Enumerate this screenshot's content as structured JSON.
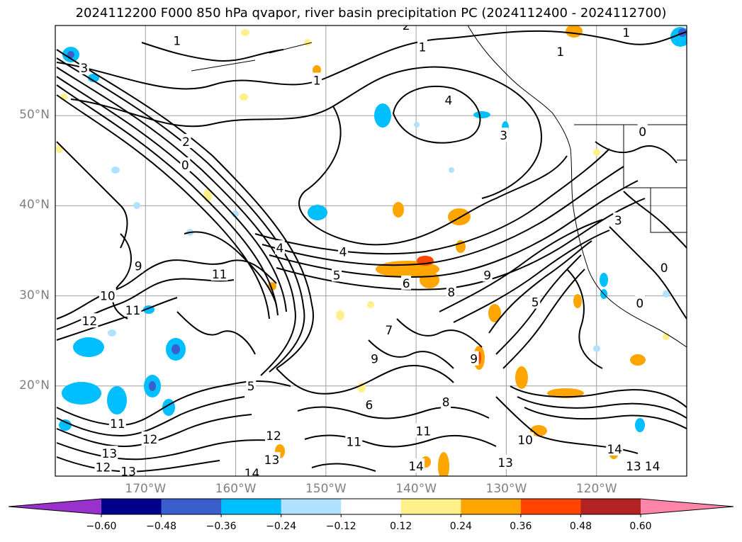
{
  "chart_data": {
    "type": "heatmap",
    "title": "2024112200 F000 850 hPa qvapor, river basin precipitation PC (2024112400 - 2024112700)",
    "xlabel": "",
    "ylabel": "",
    "lon_range": [
      -180,
      -110
    ],
    "lat_range": [
      10,
      60
    ],
    "lat_ticks": [
      "50°N",
      "40°N",
      "30°N",
      "20°N"
    ],
    "lat_tick_values": [
      50,
      40,
      30,
      20
    ],
    "lon_ticks": [
      "170°W",
      "160°W",
      "150°W",
      "140°W",
      "130°W",
      "120°W"
    ],
    "lon_tick_values": [
      -170,
      -160,
      -150,
      -140,
      -130,
      -120
    ],
    "grid": true,
    "contour_field": "850 hPa qvapor",
    "contour_levels": [
      0,
      1,
      2,
      3,
      4,
      5,
      6,
      7,
      8,
      9,
      10,
      11,
      12,
      13,
      14
    ],
    "shaded_field": "river basin precipitation PC",
    "colorbar": {
      "ticks": [
        "−0.60",
        "−0.48",
        "−0.36",
        "−0.24",
        "−0.12",
        "0.12",
        "0.24",
        "0.36",
        "0.48",
        "0.60"
      ],
      "boundaries": [
        -0.6,
        -0.48,
        -0.36,
        -0.24,
        -0.12,
        0.12,
        0.24,
        0.36,
        0.48,
        0.6
      ],
      "colors": [
        "#9932cc",
        "#00008b",
        "#3a5fcd",
        "#00bfff",
        "#b0e2ff",
        "#ffffff",
        "#fff08a",
        "#ffa500",
        "#ff4500",
        "#b22222",
        "#ff85a8"
      ],
      "extend": "both"
    },
    "contour_labels": [
      {
        "v": "1",
        "lon": -166.5,
        "lat": 58.3
      },
      {
        "v": "1",
        "lon": -151.0,
        "lat": 53.9
      },
      {
        "v": "1",
        "lon": -139.3,
        "lat": 57.6
      },
      {
        "v": "1",
        "lon": -124.0,
        "lat": 57.1
      },
      {
        "v": "1",
        "lon": -116.7,
        "lat": 59.2
      },
      {
        "v": "2",
        "lon": -165.5,
        "lat": 47.1
      },
      {
        "v": "2",
        "lon": -141.1,
        "lat": 60.0
      },
      {
        "v": "3",
        "lon": -176.8,
        "lat": 55.3
      },
      {
        "v": "3",
        "lon": -130.3,
        "lat": 47.8
      },
      {
        "v": "3",
        "lon": -117.6,
        "lat": 38.4
      },
      {
        "v": "4",
        "lon": -136.4,
        "lat": 51.7
      },
      {
        "v": "4",
        "lon": -148.1,
        "lat": 34.9
      },
      {
        "v": "4",
        "lon": -155.1,
        "lat": 35.3
      },
      {
        "v": "0",
        "lon": -165.6,
        "lat": 44.5
      },
      {
        "v": "5",
        "lon": -148.8,
        "lat": 32.3
      },
      {
        "v": "6",
        "lon": -141.1,
        "lat": 31.4
      },
      {
        "v": "9",
        "lon": -132.1,
        "lat": 32.3
      },
      {
        "v": "8",
        "lon": -136.1,
        "lat": 30.4
      },
      {
        "v": "11",
        "lon": -161.8,
        "lat": 32.4
      },
      {
        "v": "5",
        "lon": -158.3,
        "lat": 20.0
      },
      {
        "v": "9",
        "lon": -133.6,
        "lat": 23.0
      },
      {
        "v": "11",
        "lon": -139.2,
        "lat": 15.0
      },
      {
        "v": "10",
        "lon": -127.9,
        "lat": 14.0
      },
      {
        "v": "11",
        "lon": -173.1,
        "lat": 15.8
      },
      {
        "v": "12",
        "lon": -169.5,
        "lat": 14.1
      },
      {
        "v": "12",
        "lon": -155.8,
        "lat": 14.5
      },
      {
        "v": "11",
        "lon": -146.9,
        "lat": 13.8
      },
      {
        "v": "13",
        "lon": -174.0,
        "lat": 12.5
      },
      {
        "v": "12",
        "lon": -174.7,
        "lat": 11.0
      },
      {
        "v": "13",
        "lon": -171.9,
        "lat": 10.5
      },
      {
        "v": "13",
        "lon": -156.0,
        "lat": 11.8
      },
      {
        "v": "14",
        "lon": -158.2,
        "lat": 10.3
      },
      {
        "v": "14",
        "lon": -140.0,
        "lat": 11.1
      },
      {
        "v": "13",
        "lon": -130.1,
        "lat": 11.5
      },
      {
        "v": "14",
        "lon": -118.0,
        "lat": 13.0
      },
      {
        "v": "13",
        "lon": -115.9,
        "lat": 11.1
      },
      {
        "v": "14",
        "lon": -113.8,
        "lat": 11.1
      },
      {
        "v": "0",
        "lon": -114.9,
        "lat": 48.2
      },
      {
        "v": "0",
        "lon": -112.5,
        "lat": 33.1
      },
      {
        "v": "0",
        "lon": -115.2,
        "lat": 29.2
      },
      {
        "v": "5",
        "lon": -126.8,
        "lat": 29.3
      },
      {
        "v": "12",
        "lon": -176.2,
        "lat": 27.2
      },
      {
        "v": "11",
        "lon": -171.4,
        "lat": 28.4
      },
      {
        "v": "10",
        "lon": -174.2,
        "lat": 30.0
      },
      {
        "v": "9",
        "lon": -170.8,
        "lat": 33.3
      },
      {
        "v": "6",
        "lon": -145.2,
        "lat": 17.9
      },
      {
        "v": "7",
        "lon": -143.0,
        "lat": 26.2
      },
      {
        "v": "9",
        "lon": -144.6,
        "lat": 23.0
      },
      {
        "v": "8",
        "lon": -136.7,
        "lat": 18.2
      }
    ]
  }
}
